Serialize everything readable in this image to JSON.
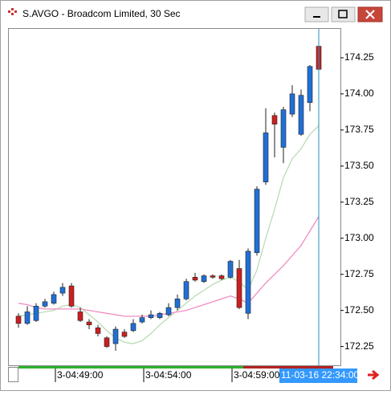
{
  "chart_data": {
    "type": "candlestick",
    "title": "S.AVGO - Broadcom Limited, 30 Sec",
    "crosshair_label": "11-03-16 22:34:00",
    "categories": [
      null,
      null,
      null,
      null,
      null,
      null,
      null,
      null,
      null,
      null,
      null,
      null,
      null,
      null,
      null,
      null,
      null,
      null,
      null,
      null,
      null,
      null,
      null,
      null,
      null,
      null,
      null,
      null,
      null,
      null,
      null,
      null,
      null,
      null,
      null
    ],
    "xticks": [
      {
        "value": 4,
        "label": "3-04:49:00"
      },
      {
        "value": 14,
        "label": "3-04:54:00"
      },
      {
        "value": 24,
        "label": "3-04:59:00"
      }
    ],
    "open": [
      172.46,
      172.41,
      172.43,
      172.53,
      172.55,
      172.62,
      172.67,
      172.49,
      172.42,
      172.38,
      172.31,
      172.27,
      172.35,
      172.36,
      172.42,
      172.45,
      172.45,
      172.47,
      172.52,
      172.58,
      172.73,
      172.7,
      172.74,
      172.74,
      172.73,
      172.79,
      172.48,
      172.9,
      173.39,
      173.85,
      173.63,
      173.86,
      173.72,
      173.94,
      174.33
    ],
    "high": [
      172.48,
      172.53,
      172.55,
      172.58,
      172.63,
      172.69,
      172.69,
      172.52,
      172.44,
      172.4,
      172.32,
      172.39,
      172.37,
      172.44,
      172.47,
      172.5,
      172.49,
      172.55,
      172.61,
      172.72,
      172.76,
      172.75,
      172.75,
      172.75,
      172.85,
      172.85,
      172.93,
      173.36,
      173.9,
      173.87,
      173.91,
      174.06,
      174.03,
      174.2,
      174.38
    ],
    "low": [
      172.38,
      172.4,
      172.42,
      172.52,
      172.54,
      172.6,
      172.52,
      172.42,
      172.37,
      172.32,
      172.24,
      172.22,
      172.31,
      172.35,
      172.41,
      172.44,
      172.44,
      172.46,
      172.5,
      172.57,
      172.7,
      172.69,
      172.72,
      172.71,
      172.72,
      172.51,
      172.44,
      172.88,
      173.37,
      173.56,
      173.52,
      173.84,
      173.71,
      173.88,
      174.15
    ],
    "close": [
      172.41,
      172.49,
      172.53,
      172.56,
      172.61,
      172.66,
      172.53,
      172.43,
      172.4,
      172.34,
      172.25,
      172.37,
      172.32,
      172.41,
      172.45,
      172.47,
      172.48,
      172.52,
      172.58,
      172.7,
      172.71,
      172.74,
      172.73,
      172.72,
      172.84,
      172.52,
      172.91,
      173.34,
      173.73,
      173.79,
      173.89,
      174.0,
      173.99,
      174.19,
      174.17
    ],
    "up_color": "#1f6fd6",
    "down_color": "#cc1f1f",
    "lines": [
      {
        "color": "#b9dcb4",
        "values": [
          172.46,
          172.47,
          172.48,
          172.49,
          172.5,
          172.53,
          172.54,
          172.52,
          172.47,
          172.42,
          172.36,
          172.31,
          172.28,
          172.27,
          172.29,
          172.34,
          172.4,
          172.45,
          172.5,
          172.55,
          172.6,
          172.64,
          172.68,
          172.71,
          172.73,
          172.7,
          172.64,
          172.78,
          173.0,
          173.2,
          173.42,
          173.55,
          173.62,
          173.72,
          173.78
        ]
      },
      {
        "color": "#f08cc0",
        "values": [
          172.55,
          172.54,
          172.52,
          172.51,
          172.51,
          172.51,
          172.51,
          172.51,
          172.5,
          172.49,
          172.48,
          172.47,
          172.46,
          172.46,
          172.46,
          172.46,
          172.47,
          172.48,
          172.49,
          172.5,
          172.52,
          172.54,
          172.56,
          172.58,
          172.6,
          172.58,
          172.55,
          172.62,
          172.69,
          172.75,
          172.81,
          172.88,
          172.95,
          173.05,
          173.15
        ]
      }
    ],
    "ylim": [
      172.12,
      174.45
    ],
    "yticks": [
      172.25,
      {
        "value": 172.5,
        "label": "172.50"
      },
      172.75,
      {
        "value": 173,
        "label": "173.00"
      },
      173.25,
      {
        "value": 173.5,
        "label": "173.50"
      },
      173.75,
      {
        "value": 174,
        "label": "174.00"
      },
      174.25
    ]
  }
}
